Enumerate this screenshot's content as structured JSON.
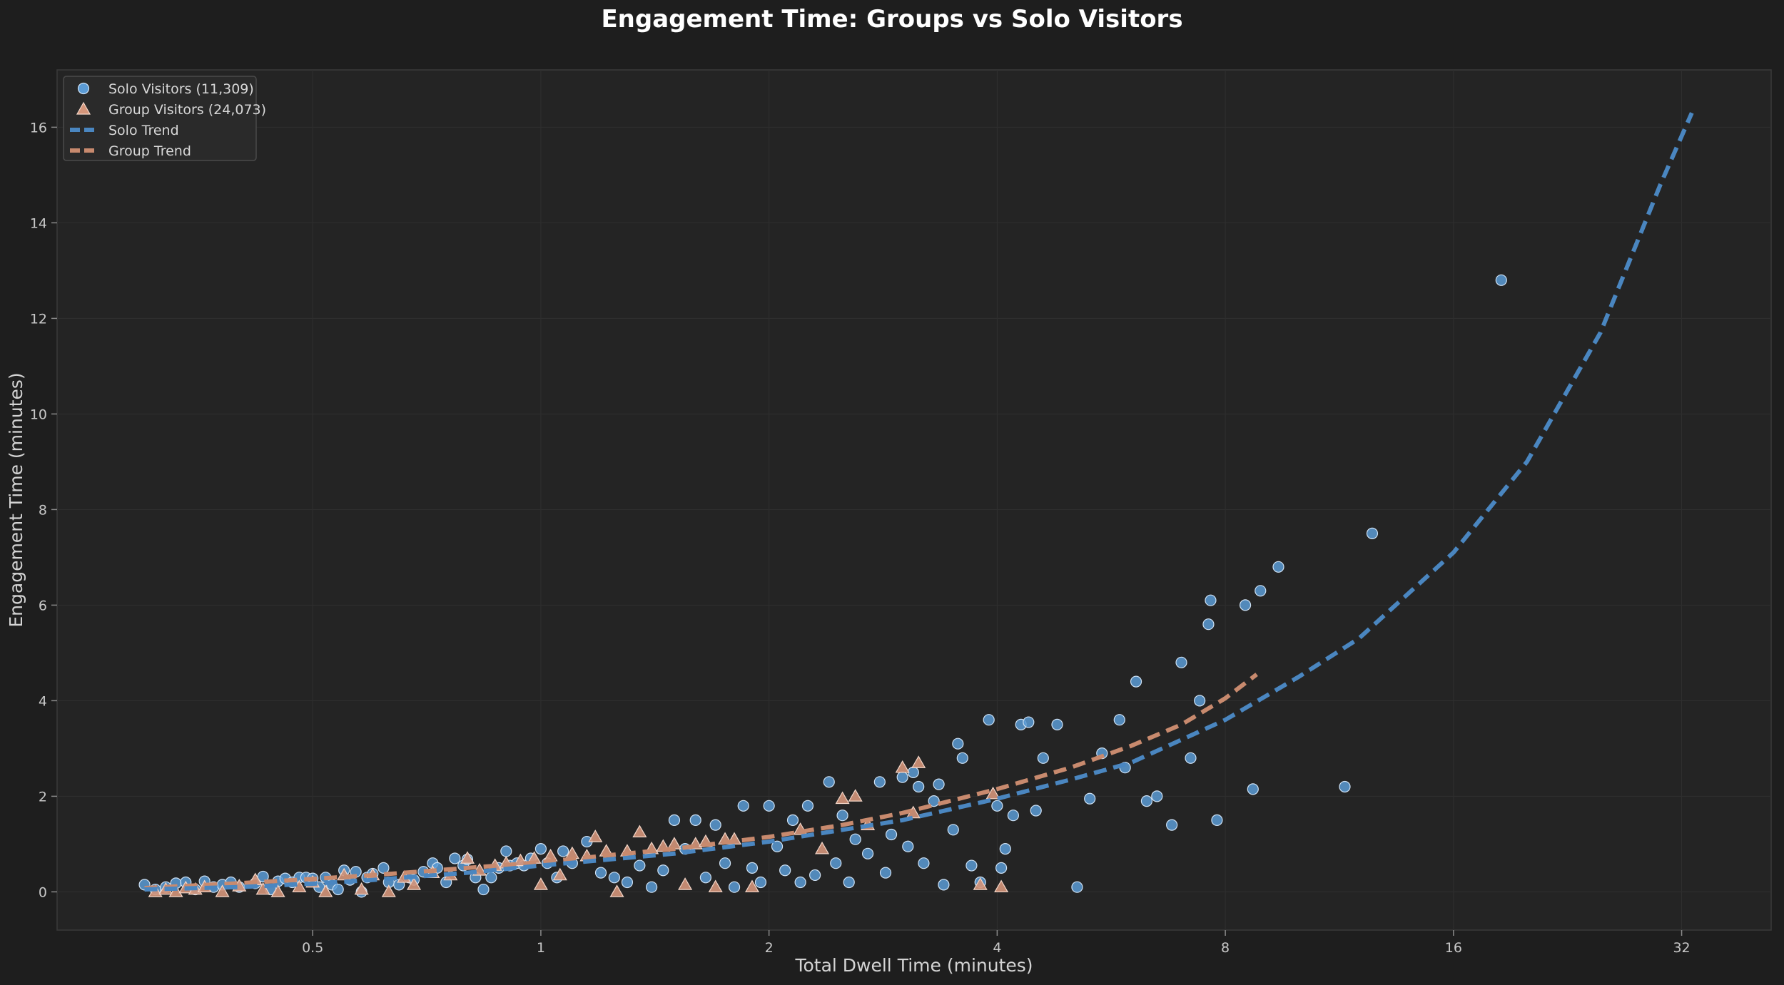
{
  "chart_data": {
    "type": "scatter",
    "title": "Engagement Time: Groups vs Solo Visitors",
    "xlabel": "Total Dwell Time (minutes)",
    "ylabel": "Engagement Time (minutes)",
    "x_scale": "log2",
    "xlim": [
      0.23,
      42
    ],
    "ylim": [
      -0.8,
      17.2
    ],
    "x_ticks": [
      0.5,
      1,
      2,
      4,
      8,
      16,
      32
    ],
    "x_tick_labels": [
      "0.5",
      "1",
      "2",
      "4",
      "8",
      "16",
      "32"
    ],
    "y_ticks": [
      0,
      2,
      4,
      6,
      8,
      10,
      12,
      14,
      16
    ],
    "y_tick_labels": [
      "0",
      "2",
      "4",
      "6",
      "8",
      "10",
      "12",
      "14",
      "16"
    ],
    "grid": true,
    "legend_position": "top-left",
    "legend": [
      {
        "label": "Solo Visitors (11,309)",
        "marker": "circle",
        "color": "#5b9bd5"
      },
      {
        "label": "Group Visitors (24,073)",
        "marker": "triangle",
        "color": "#d4957a"
      },
      {
        "label": "Solo Trend",
        "marker": "dashed-line",
        "color": "#4a86c0"
      },
      {
        "label": "Group Trend",
        "marker": "dashed-line",
        "color": "#c88a6e"
      }
    ],
    "colors": {
      "background": "#1e1e1e",
      "plot_area": "#242424",
      "solo": "#5b9bd5",
      "group": "#d4957a",
      "solo_trend": "#4a86c0",
      "group_trend": "#c88a6e"
    },
    "series": [
      {
        "name": "Solo Visitors (11,309)",
        "marker": "circle",
        "points": [
          [
            0.3,
            0.15
          ],
          [
            0.31,
            0.05
          ],
          [
            0.32,
            0.1
          ],
          [
            0.33,
            0.18
          ],
          [
            0.34,
            0.2
          ],
          [
            0.35,
            0.05
          ],
          [
            0.36,
            0.22
          ],
          [
            0.37,
            0.1
          ],
          [
            0.38,
            0.15
          ],
          [
            0.39,
            0.2
          ],
          [
            0.4,
            0.1
          ],
          [
            0.42,
            0.18
          ],
          [
            0.43,
            0.32
          ],
          [
            0.44,
            0.05
          ],
          [
            0.45,
            0.22
          ],
          [
            0.46,
            0.28
          ],
          [
            0.47,
            0.2
          ],
          [
            0.48,
            0.3
          ],
          [
            0.49,
            0.3
          ],
          [
            0.5,
            0.28
          ],
          [
            0.51,
            0.1
          ],
          [
            0.52,
            0.3
          ],
          [
            0.53,
            0.15
          ],
          [
            0.54,
            0.05
          ],
          [
            0.55,
            0.45
          ],
          [
            0.56,
            0.25
          ],
          [
            0.57,
            0.42
          ],
          [
            0.58,
            0.0
          ],
          [
            0.59,
            0.3
          ],
          [
            0.6,
            0.38
          ],
          [
            0.62,
            0.5
          ],
          [
            0.63,
            0.2
          ],
          [
            0.65,
            0.15
          ],
          [
            0.67,
            0.3
          ],
          [
            0.68,
            0.25
          ],
          [
            0.7,
            0.42
          ],
          [
            0.72,
            0.6
          ],
          [
            0.73,
            0.5
          ],
          [
            0.75,
            0.2
          ],
          [
            0.77,
            0.7
          ],
          [
            0.79,
            0.55
          ],
          [
            0.8,
            0.68
          ],
          [
            0.82,
            0.3
          ],
          [
            0.84,
            0.05
          ],
          [
            0.86,
            0.3
          ],
          [
            0.88,
            0.5
          ],
          [
            0.9,
            0.85
          ],
          [
            0.91,
            0.55
          ],
          [
            0.93,
            0.6
          ],
          [
            0.95,
            0.55
          ],
          [
            0.97,
            0.7
          ],
          [
            1.0,
            0.9
          ],
          [
            1.02,
            0.6
          ],
          [
            1.05,
            0.3
          ],
          [
            1.07,
            0.85
          ],
          [
            1.1,
            0.6
          ],
          [
            1.15,
            1.05
          ],
          [
            1.2,
            0.4
          ],
          [
            1.25,
            0.3
          ],
          [
            1.3,
            0.2
          ],
          [
            1.35,
            0.55
          ],
          [
            1.4,
            0.1
          ],
          [
            1.45,
            0.45
          ],
          [
            1.5,
            1.5
          ],
          [
            1.55,
            0.9
          ],
          [
            1.6,
            1.5
          ],
          [
            1.65,
            0.3
          ],
          [
            1.7,
            1.4
          ],
          [
            1.75,
            0.6
          ],
          [
            1.8,
            0.1
          ],
          [
            1.85,
            1.8
          ],
          [
            1.9,
            0.5
          ],
          [
            1.95,
            0.2
          ],
          [
            2.0,
            1.8
          ],
          [
            2.05,
            0.95
          ],
          [
            2.1,
            0.45
          ],
          [
            2.15,
            1.5
          ],
          [
            2.2,
            0.2
          ],
          [
            2.25,
            1.8
          ],
          [
            2.3,
            0.35
          ],
          [
            2.4,
            2.3
          ],
          [
            2.45,
            0.6
          ],
          [
            2.5,
            1.6
          ],
          [
            2.55,
            0.2
          ],
          [
            2.6,
            1.1
          ],
          [
            2.7,
            0.8
          ],
          [
            2.8,
            2.3
          ],
          [
            2.85,
            0.4
          ],
          [
            2.9,
            1.2
          ],
          [
            3.0,
            2.4
          ],
          [
            3.05,
            0.95
          ],
          [
            3.1,
            2.5
          ],
          [
            3.15,
            2.2
          ],
          [
            3.2,
            0.6
          ],
          [
            3.3,
            1.9
          ],
          [
            3.35,
            2.25
          ],
          [
            3.4,
            0.15
          ],
          [
            3.5,
            1.3
          ],
          [
            3.55,
            3.1
          ],
          [
            3.6,
            2.8
          ],
          [
            3.7,
            0.55
          ],
          [
            3.8,
            0.2
          ],
          [
            3.9,
            3.6
          ],
          [
            4.0,
            1.8
          ],
          [
            4.05,
            0.5
          ],
          [
            4.1,
            0.9
          ],
          [
            4.2,
            1.6
          ],
          [
            4.3,
            3.5
          ],
          [
            4.4,
            3.55
          ],
          [
            4.5,
            1.7
          ],
          [
            4.6,
            2.8
          ],
          [
            4.8,
            3.5
          ],
          [
            5.1,
            0.1
          ],
          [
            5.3,
            1.95
          ],
          [
            5.5,
            2.9
          ],
          [
            5.8,
            3.6
          ],
          [
            5.9,
            2.6
          ],
          [
            6.1,
            4.4
          ],
          [
            6.3,
            1.9
          ],
          [
            6.5,
            2.0
          ],
          [
            6.8,
            1.4
          ],
          [
            7.0,
            4.8
          ],
          [
            7.2,
            2.8
          ],
          [
            7.4,
            4.0
          ],
          [
            7.6,
            5.6
          ],
          [
            7.65,
            6.1
          ],
          [
            7.8,
            1.5
          ],
          [
            8.5,
            6.0
          ],
          [
            8.7,
            2.15
          ],
          [
            8.9,
            6.3
          ],
          [
            9.4,
            6.8
          ],
          [
            11.5,
            2.2
          ],
          [
            12.5,
            7.5
          ],
          [
            18.5,
            12.8
          ]
        ]
      },
      {
        "name": "Group Visitors (24,073)",
        "marker": "triangle",
        "points": [
          [
            0.31,
            0.0
          ],
          [
            0.32,
            0.05
          ],
          [
            0.33,
            0.0
          ],
          [
            0.34,
            0.08
          ],
          [
            0.35,
            0.05
          ],
          [
            0.36,
            0.1
          ],
          [
            0.38,
            0.0
          ],
          [
            0.4,
            0.12
          ],
          [
            0.42,
            0.25
          ],
          [
            0.43,
            0.05
          ],
          [
            0.45,
            0.0
          ],
          [
            0.48,
            0.1
          ],
          [
            0.5,
            0.2
          ],
          [
            0.52,
            0.0
          ],
          [
            0.55,
            0.35
          ],
          [
            0.58,
            0.05
          ],
          [
            0.6,
            0.35
          ],
          [
            0.63,
            0.0
          ],
          [
            0.66,
            0.3
          ],
          [
            0.68,
            0.15
          ],
          [
            0.72,
            0.4
          ],
          [
            0.76,
            0.35
          ],
          [
            0.8,
            0.7
          ],
          [
            0.83,
            0.45
          ],
          [
            0.87,
            0.55
          ],
          [
            0.9,
            0.6
          ],
          [
            0.94,
            0.65
          ],
          [
            0.98,
            0.7
          ],
          [
            1.0,
            0.15
          ],
          [
            1.03,
            0.75
          ],
          [
            1.06,
            0.35
          ],
          [
            1.1,
            0.8
          ],
          [
            1.15,
            0.75
          ],
          [
            1.18,
            1.15
          ],
          [
            1.22,
            0.85
          ],
          [
            1.26,
            0.0
          ],
          [
            1.3,
            0.85
          ],
          [
            1.35,
            1.25
          ],
          [
            1.4,
            0.9
          ],
          [
            1.45,
            0.95
          ],
          [
            1.5,
            1.0
          ],
          [
            1.55,
            0.15
          ],
          [
            1.6,
            1.0
          ],
          [
            1.65,
            1.05
          ],
          [
            1.7,
            0.1
          ],
          [
            1.75,
            1.1
          ],
          [
            1.8,
            1.1
          ],
          [
            1.9,
            0.1
          ],
          [
            2.2,
            1.3
          ],
          [
            2.35,
            0.9
          ],
          [
            2.5,
            1.95
          ],
          [
            2.6,
            2.0
          ],
          [
            2.7,
            1.4
          ],
          [
            3.0,
            2.6
          ],
          [
            3.1,
            1.65
          ],
          [
            3.15,
            2.7
          ],
          [
            3.8,
            0.15
          ],
          [
            3.95,
            2.05
          ],
          [
            4.05,
            0.1
          ]
        ]
      },
      {
        "name": "Solo Trend",
        "marker": "dashed-line",
        "points": [
          [
            0.3,
            0.05
          ],
          [
            0.4,
            0.1
          ],
          [
            0.5,
            0.17
          ],
          [
            0.6,
            0.25
          ],
          [
            0.8,
            0.4
          ],
          [
            1.0,
            0.55
          ],
          [
            1.5,
            0.8
          ],
          [
            2.0,
            1.05
          ],
          [
            3.0,
            1.5
          ],
          [
            4.0,
            1.95
          ],
          [
            5.0,
            2.35
          ],
          [
            6.0,
            2.7
          ],
          [
            8.0,
            3.6
          ],
          [
            10.0,
            4.5
          ],
          [
            12.0,
            5.3
          ],
          [
            16.0,
            7.1
          ],
          [
            20.0,
            9.0
          ],
          [
            25.0,
            11.7
          ],
          [
            30.0,
            14.8
          ],
          [
            33.0,
            16.3
          ]
        ]
      },
      {
        "name": "Group Trend",
        "marker": "dashed-line",
        "points": [
          [
            0.3,
            0.08
          ],
          [
            0.4,
            0.18
          ],
          [
            0.5,
            0.27
          ],
          [
            0.6,
            0.35
          ],
          [
            0.8,
            0.5
          ],
          [
            1.0,
            0.62
          ],
          [
            1.2,
            0.75
          ],
          [
            1.5,
            0.9
          ],
          [
            2.0,
            1.15
          ],
          [
            2.5,
            1.4
          ],
          [
            3.0,
            1.65
          ],
          [
            4.0,
            2.15
          ],
          [
            5.0,
            2.6
          ],
          [
            6.0,
            3.05
          ],
          [
            7.0,
            3.5
          ],
          [
            8.0,
            4.05
          ],
          [
            8.8,
            4.55
          ]
        ]
      }
    ]
  }
}
